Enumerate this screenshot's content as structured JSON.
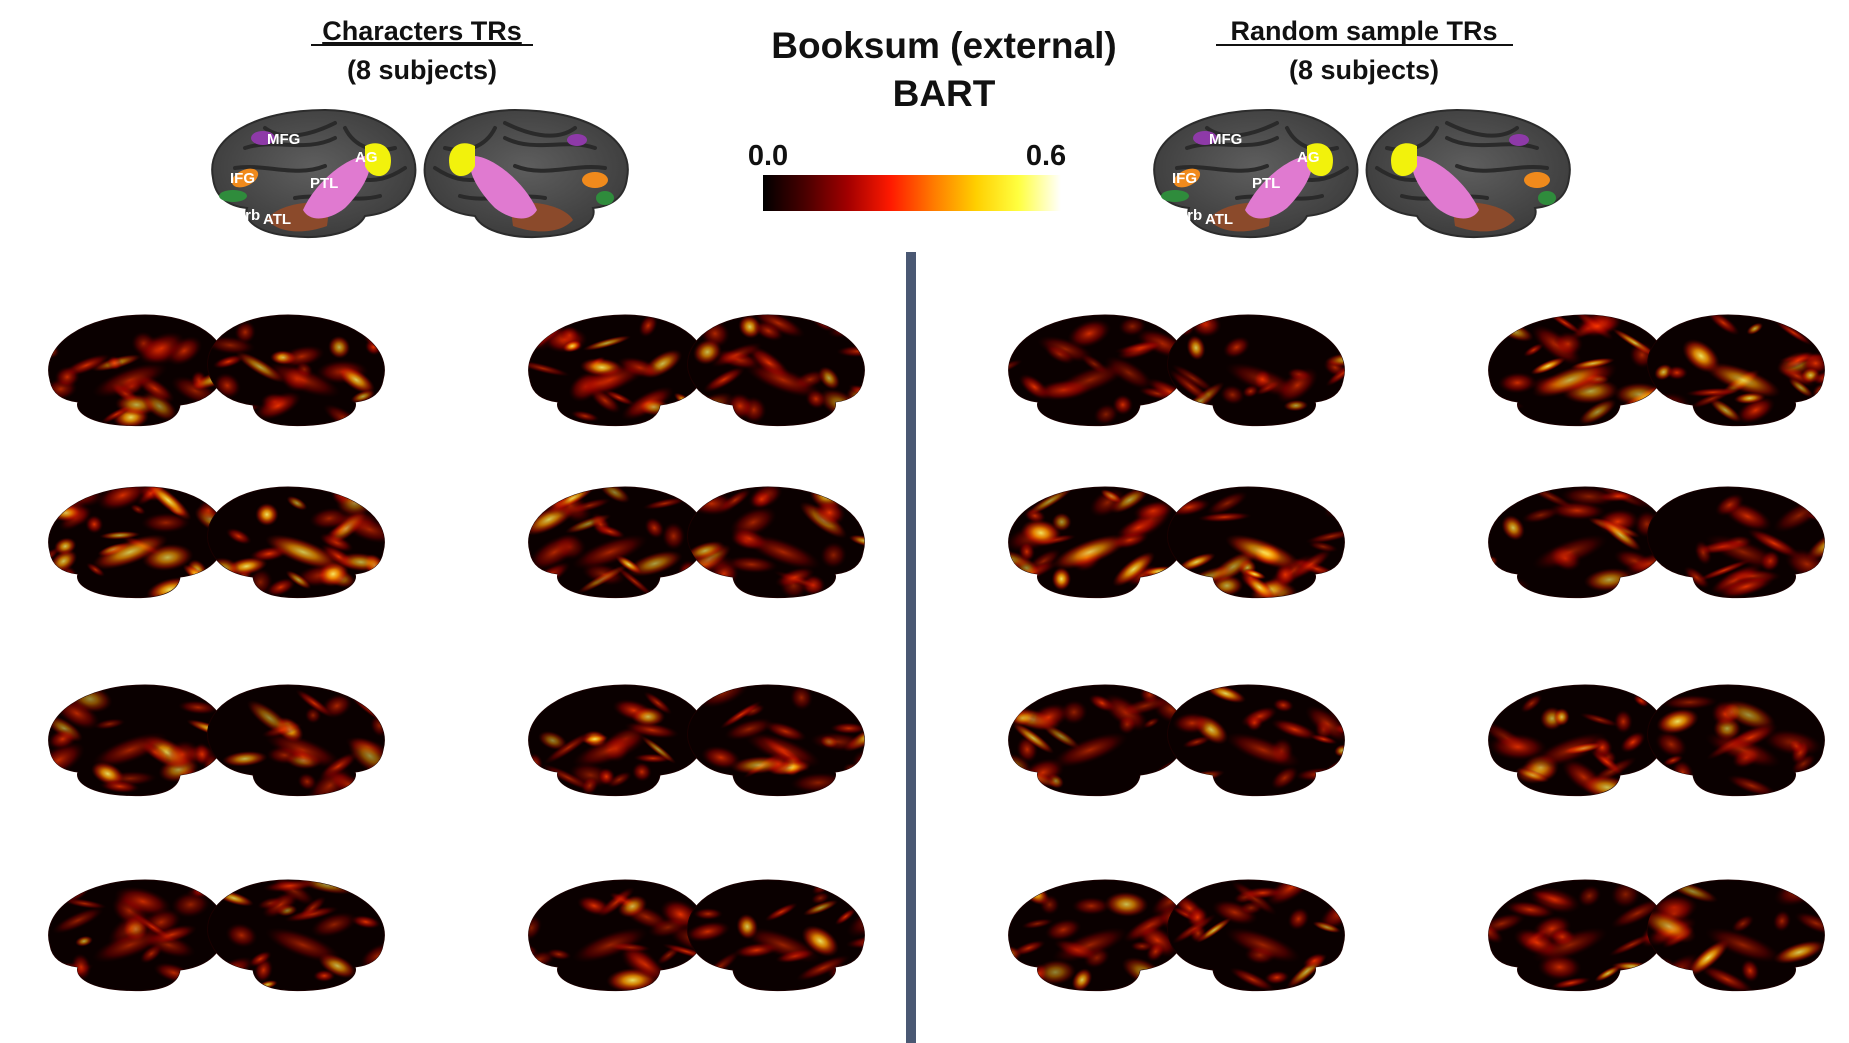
{
  "left_panel": {
    "title": "Characters TRs",
    "subtitle": "(8 subjects)"
  },
  "right_panel": {
    "title": "Random sample TRs",
    "subtitle": "(8 subjects)"
  },
  "center": {
    "title_line1": "Booksum (external)",
    "title_line2": "BART"
  },
  "colorbar": {
    "min_label": "0.0",
    "max_label": "0.6",
    "colormap": "hot",
    "stops": [
      "#000000",
      "#4a0000",
      "#a30000",
      "#ff1a00",
      "#ff7a00",
      "#ffcf00",
      "#ffff40",
      "#ffffff"
    ]
  },
  "roi_labels": {
    "mfg": "MFG",
    "ifg": "IFG",
    "ifgorb": "IFGorb",
    "atl": "ATL",
    "ptl": "PTL",
    "ag": "AG"
  },
  "roi_colors": {
    "mfg": "#8e3aa8",
    "ifg": "#f08a1c",
    "ifgorb": "#2f8c3c",
    "atl": "#8b4a2b",
    "ptl": "#e07ad0",
    "ag": "#f2f20c"
  },
  "colors": {
    "divider": "#4a5873",
    "cortex_dark": "#3d3d3d",
    "cortex_light": "#5e5e5e"
  }
}
